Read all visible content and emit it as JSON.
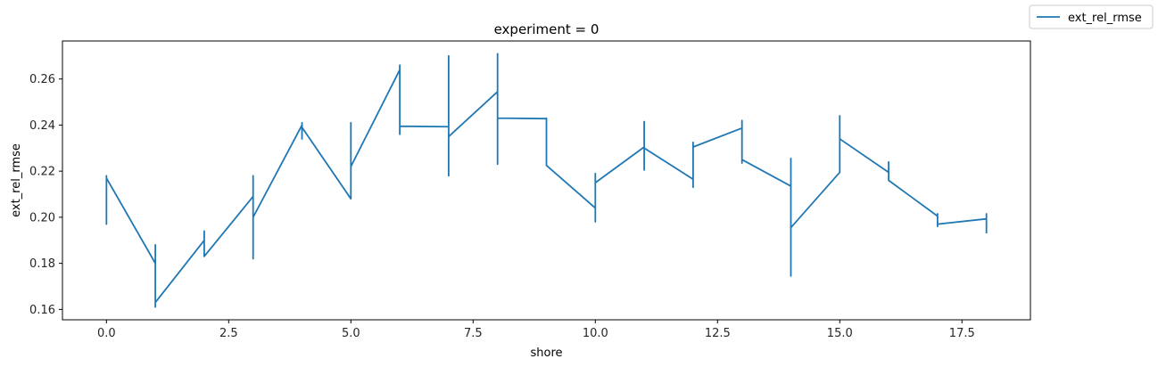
{
  "chart_data": {
    "type": "line",
    "title": "experiment = 0",
    "xlabel": "shore",
    "ylabel": "ext_rel_rmse",
    "xlim": [
      -0.9,
      18.9
    ],
    "ylim": [
      0.1555,
      0.2765
    ],
    "xticks": [
      0.0,
      2.5,
      5.0,
      7.5,
      10.0,
      12.5,
      15.0,
      17.5
    ],
    "xtick_labels": [
      "0.0",
      "2.5",
      "5.0",
      "7.5",
      "10.0",
      "12.5",
      "15.0",
      "17.5"
    ],
    "yticks": [
      0.16,
      0.18,
      0.2,
      0.22,
      0.24,
      0.26
    ],
    "ytick_labels": [
      "0.16",
      "0.18",
      "0.20",
      "0.22",
      "0.24",
      "0.26"
    ],
    "grid": false,
    "legend": {
      "position": "top-right",
      "entries": [
        "ext_rel_rmse"
      ]
    },
    "series": [
      {
        "name": "ext_rel_rmse",
        "color": "#1f77b4",
        "points": [
          [
            0.0,
            0.2
          ],
          [
            0.0,
            0.218
          ],
          [
            0.0,
            0.197
          ],
          [
            0.0,
            0.217
          ],
          [
            1.0,
            0.18
          ],
          [
            1.0,
            0.188
          ],
          [
            1.0,
            0.161
          ],
          [
            1.0,
            0.163
          ],
          [
            2.0,
            0.19
          ],
          [
            2.0,
            0.194
          ],
          [
            2.0,
            0.183
          ],
          [
            3.0,
            0.209
          ],
          [
            3.0,
            0.218
          ],
          [
            3.0,
            0.182
          ],
          [
            3.0,
            0.2
          ],
          [
            4.0,
            0.24
          ],
          [
            4.0,
            0.241
          ],
          [
            4.0,
            0.234
          ],
          [
            4.0,
            0.239
          ],
          [
            5.0,
            0.208
          ],
          [
            5.0,
            0.241
          ],
          [
            5.0,
            0.222
          ],
          [
            6.0,
            0.264
          ],
          [
            6.0,
            0.266
          ],
          [
            6.0,
            0.236
          ],
          [
            6.0,
            0.2395
          ],
          [
            7.0,
            0.2393
          ],
          [
            7.0,
            0.27
          ],
          [
            7.0,
            0.218
          ],
          [
            7.0,
            0.235
          ],
          [
            8.0,
            0.2545
          ],
          [
            8.0,
            0.271
          ],
          [
            8.0,
            0.223
          ],
          [
            8.0,
            0.243
          ],
          [
            9.0,
            0.2428
          ],
          [
            9.0,
            0.243
          ],
          [
            9.0,
            0.2225
          ],
          [
            10.0,
            0.204
          ],
          [
            10.0,
            0.219
          ],
          [
            10.0,
            0.198
          ],
          [
            10.0,
            0.215
          ],
          [
            11.0,
            0.2305
          ],
          [
            11.0,
            0.2415
          ],
          [
            11.0,
            0.2205
          ],
          [
            11.0,
            0.23
          ],
          [
            12.0,
            0.2165
          ],
          [
            12.0,
            0.2325
          ],
          [
            12.0,
            0.213
          ],
          [
            12.0,
            0.2305
          ],
          [
            13.0,
            0.2387
          ],
          [
            13.0,
            0.242
          ],
          [
            13.0,
            0.2235
          ],
          [
            13.0,
            0.225
          ],
          [
            14.0,
            0.2135
          ],
          [
            14.0,
            0.2255
          ],
          [
            14.0,
            0.1745
          ],
          [
            14.0,
            0.1955
          ],
          [
            15.0,
            0.2195
          ],
          [
            15.0,
            0.244
          ],
          [
            15.0,
            0.234
          ],
          [
            16.0,
            0.2195
          ],
          [
            16.0,
            0.224
          ],
          [
            16.0,
            0.216
          ],
          [
            17.0,
            0.2005
          ],
          [
            17.0,
            0.2015
          ],
          [
            17.0,
            0.196
          ],
          [
            17.0,
            0.197
          ],
          [
            18.0,
            0.1993
          ],
          [
            18.0,
            0.2015
          ],
          [
            18.0,
            0.193
          ]
        ]
      }
    ]
  }
}
